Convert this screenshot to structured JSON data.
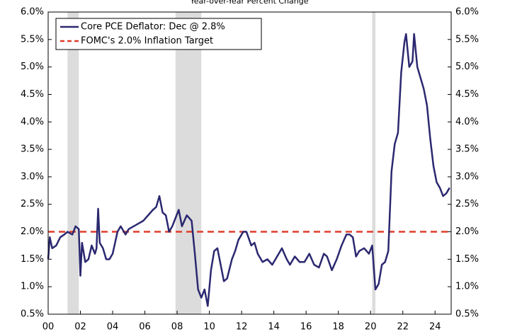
{
  "chart_data": {
    "type": "line",
    "subtitle": "Year-over-Year Percent Change",
    "x": [
      2000.0,
      2000.1,
      2000.25,
      2000.5,
      2000.75,
      2001.0,
      2001.2,
      2001.5,
      2001.7,
      2001.9,
      2002.0,
      2002.1,
      2002.3,
      2002.5,
      2002.7,
      2002.9,
      2003.0,
      2003.1,
      2003.2,
      2003.4,
      2003.6,
      2003.8,
      2004.0,
      2004.3,
      2004.5,
      2004.8,
      2005.0,
      2005.3,
      2005.6,
      2005.9,
      2006.2,
      2006.5,
      2006.7,
      2006.9,
      2007.1,
      2007.3,
      2007.5,
      2007.7,
      2007.9,
      2008.1,
      2008.3,
      2008.6,
      2008.9,
      2009.1,
      2009.3,
      2009.5,
      2009.7,
      2009.9,
      2010.1,
      2010.3,
      2010.5,
      2010.7,
      2010.9,
      2011.1,
      2011.4,
      2011.6,
      2011.8,
      2012.1,
      2012.3,
      2012.6,
      2012.8,
      2013.0,
      2013.3,
      2013.6,
      2013.9,
      2014.2,
      2014.5,
      2014.8,
      2015.0,
      2015.3,
      2015.6,
      2015.9,
      2016.2,
      2016.5,
      2016.8,
      2017.1,
      2017.3,
      2017.6,
      2017.9,
      2018.2,
      2018.5,
      2018.7,
      2018.9,
      2019.1,
      2019.3,
      2019.6,
      2019.9,
      2020.1,
      2020.3,
      2020.5,
      2020.7,
      2020.9,
      2021.1,
      2021.3,
      2021.5,
      2021.7,
      2021.9,
      2022.1,
      2022.2,
      2022.4,
      2022.6,
      2022.7,
      2022.9,
      2023.1,
      2023.3,
      2023.5,
      2023.7,
      2023.9,
      2024.1,
      2024.3,
      2024.5,
      2024.7,
      2024.9
    ],
    "series": [
      {
        "name": "Core PCE Deflator: Dec @ 2.8%",
        "color": "#2b2870",
        "values": [
          1.5,
          1.9,
          1.7,
          1.75,
          1.9,
          1.95,
          2.0,
          1.95,
          2.1,
          2.05,
          1.2,
          1.8,
          1.45,
          1.5,
          1.75,
          1.6,
          1.7,
          2.42,
          1.8,
          1.7,
          1.5,
          1.5,
          1.6,
          2.0,
          2.1,
          1.95,
          2.05,
          2.1,
          2.15,
          2.2,
          2.3,
          2.4,
          2.45,
          2.65,
          2.35,
          2.3,
          2.0,
          2.1,
          2.25,
          2.4,
          2.1,
          2.3,
          2.2,
          1.6,
          0.95,
          0.8,
          0.95,
          0.65,
          1.3,
          1.65,
          1.7,
          1.4,
          1.1,
          1.15,
          1.5,
          1.65,
          1.85,
          2.0,
          2.0,
          1.75,
          1.8,
          1.6,
          1.45,
          1.5,
          1.4,
          1.55,
          1.7,
          1.5,
          1.4,
          1.55,
          1.45,
          1.45,
          1.6,
          1.4,
          1.35,
          1.6,
          1.55,
          1.3,
          1.5,
          1.75,
          1.95,
          1.95,
          1.9,
          1.55,
          1.65,
          1.7,
          1.6,
          1.75,
          0.95,
          1.05,
          1.4,
          1.45,
          1.65,
          3.1,
          3.6,
          3.8,
          4.9,
          5.45,
          5.6,
          5.0,
          5.1,
          5.6,
          5.0,
          4.8,
          4.6,
          4.3,
          3.7,
          3.2,
          2.9,
          2.8,
          2.65,
          2.7,
          2.8
        ]
      }
    ],
    "reference_line": {
      "name": "FOMC's 2.0% Inflation Target",
      "value": 2.0,
      "color": "#e03c2a"
    },
    "shaded_periods": [
      [
        2001.2,
        2001.9
      ],
      [
        2007.9,
        2009.5
      ],
      [
        2020.1,
        2020.3
      ]
    ],
    "shade_color": "#dcdcdc",
    "xlim": [
      2000,
      2025
    ],
    "xticks": [
      {
        "value": 2000,
        "label": "00"
      },
      {
        "value": 2002,
        "label": "02"
      },
      {
        "value": 2004,
        "label": "04"
      },
      {
        "value": 2006,
        "label": "06"
      },
      {
        "value": 2008,
        "label": "08"
      },
      {
        "value": 2010,
        "label": "10"
      },
      {
        "value": 2012,
        "label": "12"
      },
      {
        "value": 2014,
        "label": "14"
      },
      {
        "value": 2016,
        "label": "16"
      },
      {
        "value": 2018,
        "label": "18"
      },
      {
        "value": 2020,
        "label": "20"
      },
      {
        "value": 2022,
        "label": "22"
      },
      {
        "value": 2024,
        "label": "24"
      }
    ],
    "ylim": [
      0.5,
      6.0
    ],
    "yticks": [
      {
        "value": 0.5,
        "label": "0.5%"
      },
      {
        "value": 1.0,
        "label": "1.0%"
      },
      {
        "value": 1.5,
        "label": "1.5%"
      },
      {
        "value": 2.0,
        "label": "2.0%"
      },
      {
        "value": 2.5,
        "label": "2.5%"
      },
      {
        "value": 3.0,
        "label": "3.0%"
      },
      {
        "value": 3.5,
        "label": "3.5%"
      },
      {
        "value": 4.0,
        "label": "4.0%"
      },
      {
        "value": 4.5,
        "label": "4.5%"
      },
      {
        "value": 5.0,
        "label": "5.0%"
      },
      {
        "value": 5.5,
        "label": "5.5%"
      },
      {
        "value": 6.0,
        "label": "6.0%"
      }
    ],
    "y2lim": [
      0.5,
      6.0
    ],
    "y2ticks": [
      {
        "value": 0.5,
        "label": "0.5%"
      },
      {
        "value": 1.0,
        "label": "1.0%"
      },
      {
        "value": 1.5,
        "label": "1.5%"
      },
      {
        "value": 2.0,
        "label": "2.0%"
      },
      {
        "value": 2.5,
        "label": "2.5%"
      },
      {
        "value": 3.0,
        "label": "3.0%"
      },
      {
        "value": 3.5,
        "label": "3.5%"
      },
      {
        "value": 4.0,
        "label": "4.0%"
      },
      {
        "value": 4.5,
        "label": "4.5%"
      },
      {
        "value": 5.0,
        "label": "5.0%"
      },
      {
        "value": 5.5,
        "label": "5.5%"
      },
      {
        "value": 6.0,
        "label": "6.0%"
      }
    ]
  }
}
